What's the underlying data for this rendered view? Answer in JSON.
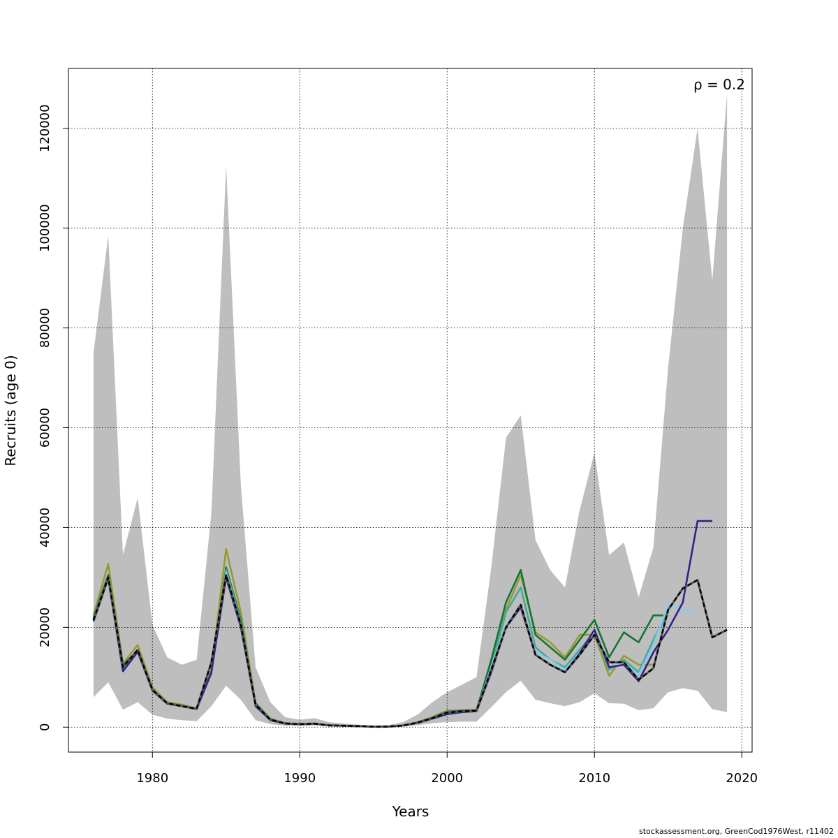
{
  "chart_data": {
    "type": "line",
    "xlabel": "Years",
    "ylabel": "Recruits (age 0)",
    "annotation": "ρ = 0.2",
    "footer": "stockassessment.org, GreenCod1976West, r11402",
    "xlim": [
      1974.3,
      2020.7
    ],
    "ylim": [
      -5000,
      132000
    ],
    "x_ticks": [
      1980,
      1990,
      2000,
      2010,
      2020
    ],
    "y_ticks": [
      0,
      20000,
      40000,
      60000,
      80000,
      100000,
      120000
    ],
    "grid": true,
    "years": [
      1976,
      1977,
      1978,
      1979,
      1980,
      1981,
      1982,
      1983,
      1984,
      1985,
      1986,
      1987,
      1988,
      1989,
      1990,
      1991,
      1992,
      1993,
      1994,
      1995,
      1996,
      1997,
      1998,
      1999,
      2000,
      2001,
      2002,
      2003,
      2004,
      2005,
      2006,
      2007,
      2008,
      2009,
      2010,
      2011,
      2012,
      2013,
      2014,
      2015,
      2016,
      2017,
      2018,
      2019
    ],
    "ci_band": {
      "color": "#bebebe",
      "upper": [
        75000,
        98500,
        34500,
        46000,
        20500,
        14000,
        12500,
        13500,
        43000,
        112500,
        48500,
        12000,
        5000,
        2000,
        1500,
        1800,
        1000,
        700,
        500,
        300,
        400,
        1000,
        2500,
        5000,
        7000,
        8500,
        10000,
        32000,
        58000,
        62500,
        37500,
        31500,
        28000,
        43500,
        55000,
        34500,
        37000,
        26000,
        36000,
        72000,
        100000,
        120000,
        89500,
        127000
      ],
      "lower": [
        6000,
        9000,
        3500,
        5000,
        2500,
        1700,
        1400,
        1200,
        4200,
        8300,
        5500,
        1400,
        600,
        300,
        300,
        350,
        200,
        100,
        80,
        50,
        60,
        150,
        400,
        800,
        1000,
        1100,
        1100,
        4000,
        7000,
        9300,
        5500,
        4800,
        4200,
        5000,
        6800,
        4800,
        4700,
        3400,
        3800,
        7000,
        7800,
        7300,
        3600,
        3000
      ]
    },
    "series": [
      {
        "color": "#999933",
        "width": 2.6,
        "values": [
          22500,
          32700,
          12700,
          16500,
          8000,
          5000,
          4500,
          3700,
          11500,
          35700,
          23000,
          4900,
          1700,
          800,
          650,
          750,
          380,
          300,
          220,
          100,
          120,
          350,
          1000,
          2000,
          3300,
          3400,
          3500,
          13000,
          23500,
          30500,
          19000,
          17000,
          14000,
          18500,
          18500,
          10300,
          14300,
          12500,
          12500
        ]
      },
      {
        "color": "#117733",
        "width": 2.6,
        "values": [
          22000,
          30500,
          12500,
          15300,
          7500,
          4800,
          4300,
          3700,
          10800,
          32000,
          21500,
          4700,
          1600,
          780,
          630,
          720,
          370,
          290,
          210,
          100,
          120,
          340,
          950,
          1900,
          3100,
          3300,
          3400,
          13500,
          25000,
          31500,
          18500,
          16000,
          13500,
          17500,
          21500,
          14000,
          19000,
          17000,
          22400,
          22400
        ]
      },
      {
        "color": "#44aa99",
        "width": 2.6,
        "values": [
          21800,
          30000,
          11800,
          15200,
          7500,
          4700,
          4200,
          3600,
          11000,
          31500,
          21000,
          4600,
          1500,
          760,
          620,
          700,
          360,
          280,
          200,
          100,
          120,
          330,
          900,
          1800,
          3000,
          3200,
          3300,
          12000,
          23000,
          28000,
          16000,
          13500,
          12000,
          15500,
          19000,
          11500,
          13500,
          11000,
          17500,
          23000
        ]
      },
      {
        "color": "#88ccee",
        "width": 2.6,
        "values": [
          21500,
          29800,
          11500,
          15000,
          7300,
          4700,
          4200,
          3600,
          11000,
          31000,
          20500,
          4500,
          1500,
          750,
          600,
          700,
          350,
          280,
          200,
          100,
          110,
          320,
          900,
          1800,
          2800,
          3100,
          3300,
          12000,
          20500,
          24500,
          15000,
          13500,
          11500,
          15000,
          19000,
          12000,
          13000,
          10500,
          16500,
          24500,
          23500,
          23000
        ]
      },
      {
        "color": "#332288",
        "width": 2.6,
        "values": [
          21200,
          29800,
          11200,
          15100,
          7300,
          4700,
          4200,
          3600,
          11000,
          30000,
          20000,
          4200,
          1400,
          700,
          550,
          650,
          330,
          260,
          190,
          90,
          100,
          300,
          850,
          1700,
          2600,
          3000,
          3200,
          11000,
          20000,
          24000,
          14500,
          12500,
          11000,
          14800,
          19500,
          12000,
          12500,
          9200,
          15000,
          19500,
          25000,
          41300,
          41300
        ]
      },
      {
        "color": "#000000",
        "width": 2.4,
        "dashed": true,
        "values": [
          21500,
          30000,
          12000,
          15500,
          7500,
          4800,
          4200,
          3700,
          13000,
          30500,
          20500,
          4500,
          1500,
          750,
          600,
          700,
          350,
          280,
          200,
          100,
          110,
          320,
          900,
          1800,
          2900,
          3200,
          3300,
          11500,
          20000,
          24500,
          14500,
          12500,
          11000,
          14500,
          18500,
          13000,
          13000,
          9500,
          11800,
          23500,
          27800,
          29500,
          18000,
          19500
        ]
      }
    ]
  }
}
